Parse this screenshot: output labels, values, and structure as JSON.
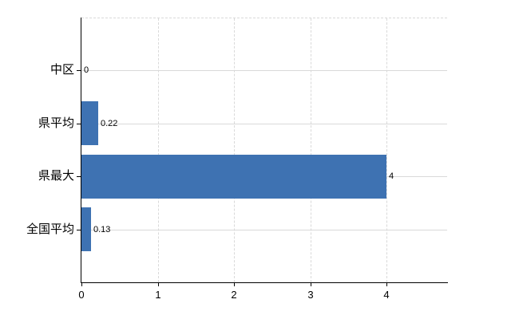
{
  "chart_data": {
    "type": "bar",
    "orientation": "horizontal",
    "title": "",
    "xlabel": "",
    "ylabel": "",
    "categories": [
      "中区",
      "県平均",
      "県最大",
      "全国平均"
    ],
    "values": [
      0,
      0.22,
      4,
      0.13
    ],
    "value_labels": [
      "0",
      "0.22",
      "4",
      "0.13"
    ],
    "x_ticks": [
      "0",
      "1",
      "2",
      "3",
      "4"
    ],
    "x_tick_values": [
      0,
      1,
      2,
      3,
      4
    ],
    "xlim": [
      0,
      4.8
    ],
    "grid": {
      "horizontal_style": "solid",
      "vertical_style": "dashed",
      "top_border_style": "dashed"
    },
    "legend": "none",
    "colors": {
      "bar": "#3e72b2",
      "grid": "#d9d9d9",
      "axis": "#000000",
      "text": "#000000",
      "background": "#ffffff"
    }
  }
}
